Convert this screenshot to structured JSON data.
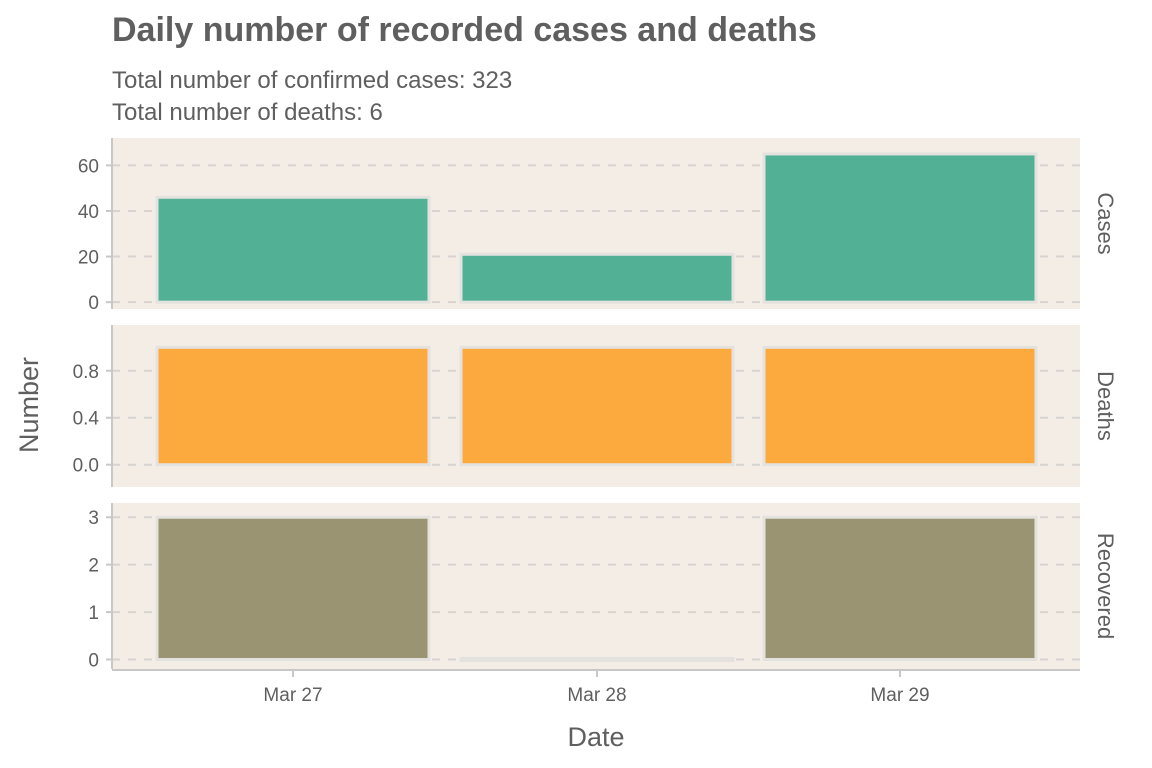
{
  "chart_data": {
    "type": "bar",
    "title": "Daily number of recorded cases and deaths",
    "subtitle_lines": [
      "Total number of confirmed cases: 323",
      "Total number of deaths: 6"
    ],
    "xlabel": "Date",
    "ylabel": "Number",
    "categories": [
      "Mar 27",
      "Mar 28",
      "Mar 29"
    ],
    "panels": [
      {
        "name": "Cases",
        "color": "#52b095",
        "values": [
          46,
          21,
          65
        ],
        "ylim": [
          -3,
          72
        ],
        "ticks": [
          0,
          20,
          40,
          60
        ],
        "tick_labels": [
          "0",
          "20",
          "40",
          "60"
        ]
      },
      {
        "name": "Deaths",
        "color": "#fca93e",
        "values": [
          1,
          1,
          1
        ],
        "ylim": [
          -0.19,
          1.19
        ],
        "ticks": [
          0,
          0.4,
          0.8
        ],
        "tick_labels": [
          "0.0",
          "0.4",
          "0.8"
        ]
      },
      {
        "name": "Recovered",
        "color": "#9a9473",
        "values": [
          3,
          0,
          3
        ],
        "ylim": [
          -0.2,
          3.3
        ],
        "ticks": [
          0,
          1,
          2,
          3
        ],
        "tick_labels": [
          "0",
          "1",
          "2",
          "3"
        ]
      }
    ],
    "grid": "horizontal-dashed",
    "panel_background": "#f4ede6",
    "bar_outline": "#e4e2df",
    "grid_color": "#d6d3d0",
    "axis_color": "#c8c8c8"
  }
}
